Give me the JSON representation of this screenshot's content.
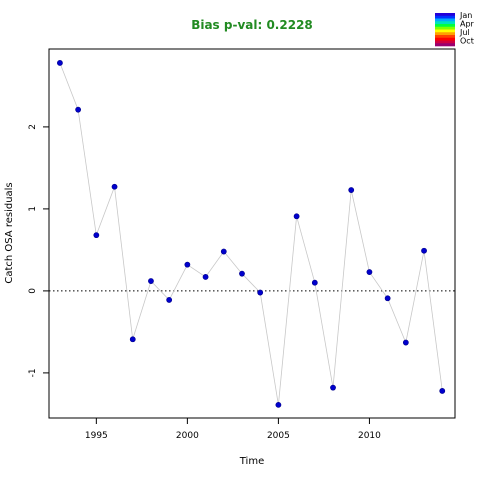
{
  "chart_data": {
    "type": "scatter",
    "title": "Bias p-val: 0.2228",
    "xlabel": "Time",
    "ylabel": "Catch OSA residuals",
    "xlim": [
      1992.4,
      2014.7
    ],
    "ylim": [
      -1.55,
      2.95
    ],
    "xticks": [
      1995,
      2000,
      2005,
      2010
    ],
    "yticks": [
      -1,
      0,
      1,
      2
    ],
    "reference_line_y": 0,
    "grid": false,
    "connect_points": true,
    "point_color": "#0000CD",
    "line_color": "#C8C8C8",
    "title_color": "#228B22",
    "x": [
      1993,
      1994,
      1995,
      1996,
      1997,
      1998,
      1999,
      2000,
      2001,
      2002,
      2003,
      2004,
      2005,
      2006,
      2007,
      2008,
      2009,
      2010,
      2011,
      2012,
      2013,
      2014
    ],
    "y": [
      2.78,
      2.21,
      0.68,
      1.27,
      -0.59,
      0.12,
      -0.11,
      0.32,
      0.17,
      0.48,
      0.21,
      -0.02,
      -1.39,
      0.91,
      0.1,
      -1.18,
      1.23,
      0.23,
      -0.09,
      -0.63,
      0.49,
      -1.22
    ],
    "legend": {
      "position": "top-right",
      "labels": [
        "Jan",
        "Apr",
        "Jul",
        "Oct"
      ],
      "colors": [
        "#2400D9",
        "#0033FF",
        "#00A8FF",
        "#00E0C0",
        "#00FF40",
        "#80FF00",
        "#FFFF00",
        "#FFA000",
        "#FF4000",
        "#FF0000",
        "#D00040",
        "#9A0070"
      ]
    }
  }
}
